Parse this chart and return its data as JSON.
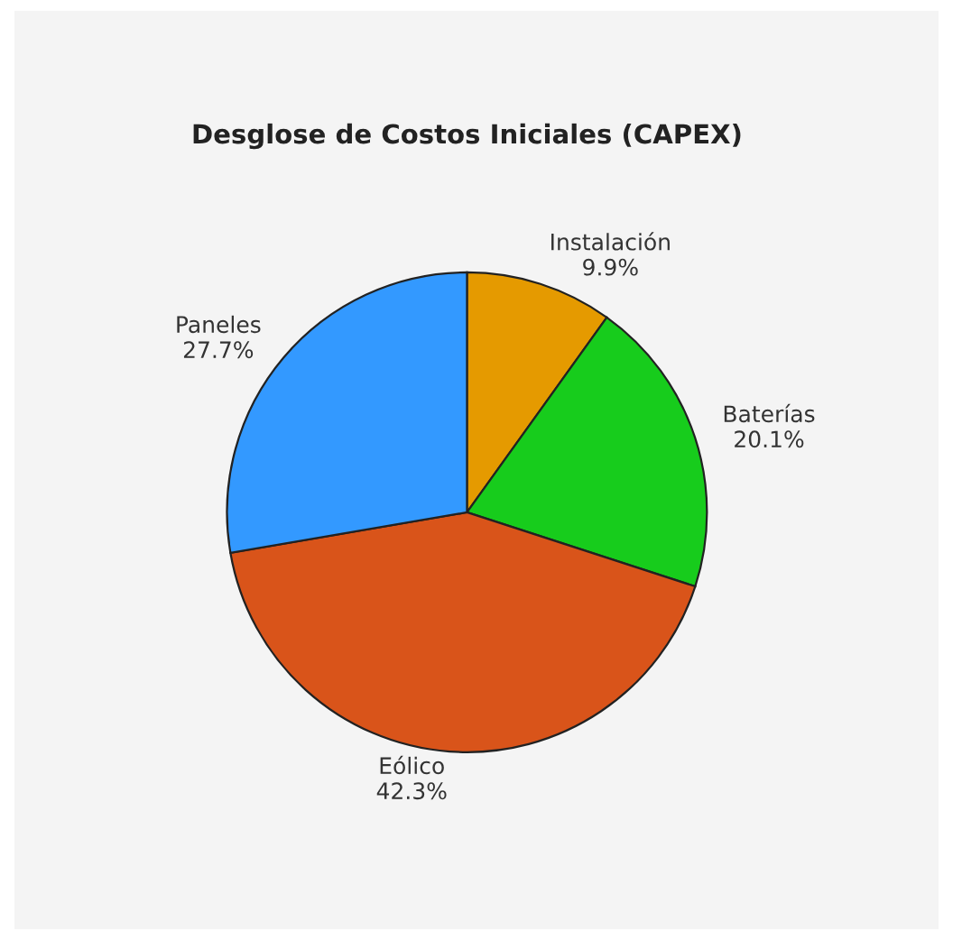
{
  "chart_data": {
    "type": "pie",
    "title": "Desglose de Costos Iniciales (CAPEX)",
    "categories": [
      "Instalación",
      "Baterías",
      "Eólico",
      "Paneles"
    ],
    "values": [
      9.9,
      20.1,
      42.3,
      27.7
    ],
    "colors": [
      "#e59a00",
      "#17cc1c",
      "#d9541a",
      "#3399ff"
    ],
    "value_labels": [
      "9.9%",
      "20.1%",
      "42.3%",
      "27.7%"
    ],
    "legend": false
  }
}
